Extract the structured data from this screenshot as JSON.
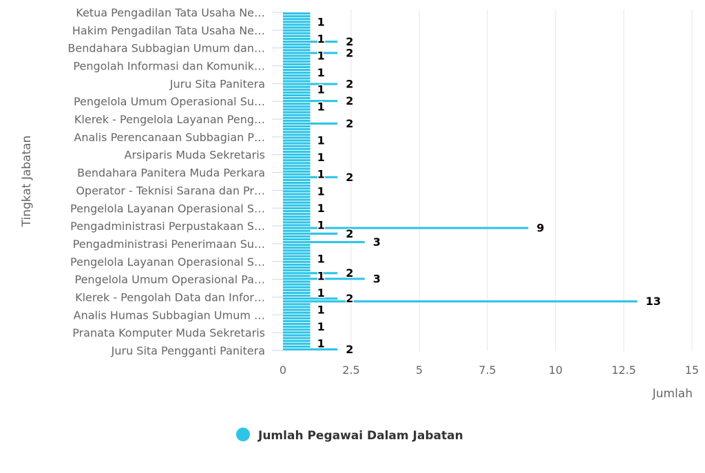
{
  "chart_data": {
    "type": "bar",
    "orientation": "horizontal",
    "xlabel": "Jumlah",
    "ylabel": "Tingkat Jabatan",
    "xlim": [
      0,
      15
    ],
    "x_ticks": [
      "0",
      "2.5",
      "5",
      "7.5",
      "10",
      "12.5",
      "15"
    ],
    "x_tick_values": [
      0,
      2.5,
      5,
      7.5,
      10,
      12.5,
      15
    ],
    "grid": true,
    "legend_position": "bottom",
    "y_tick_labels": [
      "Ketua Pengadilan Tata Usaha Ne…",
      "Hakim Pengadilan Tata Usaha Ne…",
      "Bendahara Subbagian Umum dan…",
      "Pengolah Informasi dan Komunik…",
      "Juru Sita Panitera",
      "Pengelola Umum Operasional Su…",
      "Klerek - Pengelola Layanan Peng…",
      "Analis Perencanaan Subbagian P…",
      "Arsiparis Muda Sekretaris",
      "Bendahara Panitera Muda Perkara",
      "Operator - Teknisi Sarana dan Pr…",
      "Pengelola Layanan Operasional S…",
      "Pengadministrasi Perpustakaan S…",
      "Pengadministrasi Penerimaan Su…",
      "Pengelola Layanan Operasional S…",
      "Pengelola Umum Operasional Pa…",
      "Klerek - Pengolah Data dan Infor…",
      "Analis Humas Subbagian Umum …",
      "Pranata Komputer Muda Sekretaris",
      "Juru Sita Pengganti Panitera"
    ],
    "series": [
      {
        "name": "Jumlah Pegawai Dalam Jabatan",
        "color": "#2ec4e6",
        "category_count": 120,
        "default_value": 1,
        "non_default_values": [
          {
            "index": 10,
            "value": 2
          },
          {
            "index": 14,
            "value": 2
          },
          {
            "index": 25,
            "value": 2
          },
          {
            "index": 31,
            "value": 2
          },
          {
            "index": 39,
            "value": 2
          },
          {
            "index": 58,
            "value": 2
          },
          {
            "index": 76,
            "value": 9
          },
          {
            "index": 78,
            "value": 2
          },
          {
            "index": 81,
            "value": 3
          },
          {
            "index": 92,
            "value": 2
          },
          {
            "index": 94,
            "value": 3
          },
          {
            "index": 101,
            "value": 2
          },
          {
            "index": 102,
            "value": 13
          },
          {
            "index": 119,
            "value": 2
          }
        ]
      }
    ]
  },
  "legend": {
    "label": "Jumlah Pegawai Dalam Jabatan",
    "color": "#2ec4e6"
  }
}
